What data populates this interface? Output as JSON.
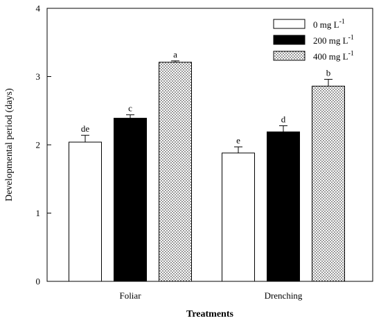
{
  "chart_data": {
    "type": "bar",
    "title": "",
    "xlabel": "Treatments",
    "ylabel": "Developmental period (days)",
    "ylim": [
      0,
      4
    ],
    "yticks": [
      "0",
      "1",
      "2",
      "3",
      "4"
    ],
    "categories": [
      "Foliar",
      "Drenching"
    ],
    "series": [
      {
        "name": "0 mg L",
        "unit_sup": "-1",
        "fill": "white",
        "color": "#ffffff",
        "values": [
          2.04,
          1.88
        ],
        "errors": [
          0.1,
          0.09
        ],
        "labels": [
          "de",
          "e"
        ]
      },
      {
        "name": "200 mg L",
        "unit_sup": "-1",
        "fill": "solid",
        "color": "#000000",
        "values": [
          2.39,
          2.19
        ],
        "errors": [
          0.05,
          0.09
        ],
        "labels": [
          "c",
          "d"
        ]
      },
      {
        "name": "400 mg L",
        "unit_sup": "-1",
        "fill": "dots",
        "color": "#ffffff",
        "values": [
          3.21,
          2.86
        ],
        "errors": [
          0.02,
          0.1
        ],
        "labels": [
          "a",
          "b"
        ]
      }
    ],
    "legend_position": "top-right",
    "grid": false
  }
}
